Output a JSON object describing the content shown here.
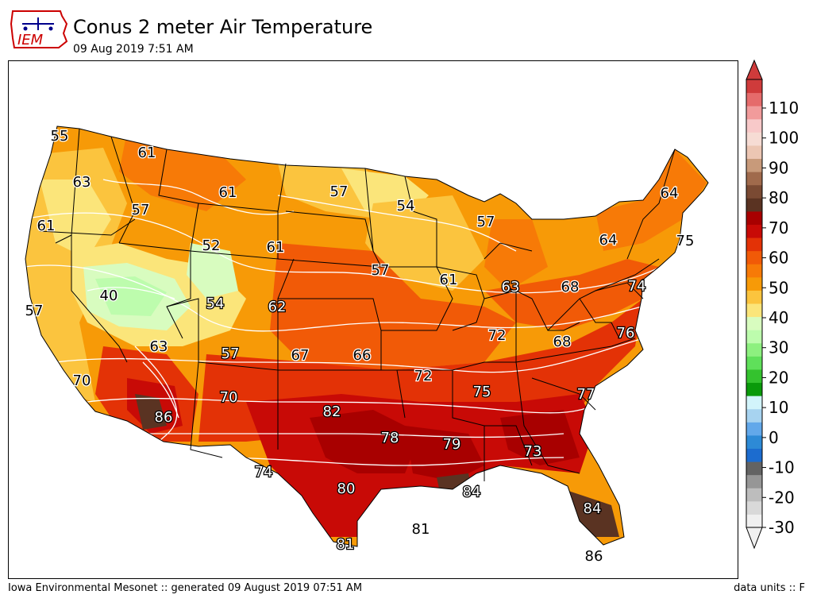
{
  "header": {
    "logo_text": "IEM",
    "title": "Conus 2 meter Air Temperature",
    "subtitle": "09 Aug 2019 7:51 AM"
  },
  "footer": {
    "left": "Iowa Environmental Mesonet :: generated 09 August 2019 07:51 AM",
    "right": "data units :: F"
  },
  "colorbar": {
    "ticks": [
      "110",
      "100",
      "90",
      "80",
      "70",
      "60",
      "50",
      "40",
      "30",
      "20",
      "10",
      "0",
      "-10",
      "-20",
      "-30"
    ],
    "colors": [
      "#f0f0f0",
      "#d9d9d9",
      "#bdbdbd",
      "#969696",
      "#636363",
      "#1c6ccf",
      "#2d8ad6",
      "#62a8ea",
      "#a7d3f0",
      "#d2f4fb",
      "#0a9a0a",
      "#34c22e",
      "#5fe05a",
      "#8df07f",
      "#bdfcad",
      "#d8fcbf",
      "#fbe57a",
      "#fbc43e",
      "#f79a07",
      "#f77a07",
      "#f15a07",
      "#e33206",
      "#c80a06",
      "#a80000",
      "#5a3322",
      "#7a4a33",
      "#a06a4c",
      "#c89a7a",
      "#ecc6b3",
      "#f6dcd4",
      "#f8c9c9",
      "#f19b9b",
      "#e56b6b",
      "#cf3b3b"
    ]
  },
  "map": {
    "labels": [
      {
        "text": "55"
      },
      {
        "text": "61"
      },
      {
        "text": "63"
      },
      {
        "text": "61"
      },
      {
        "text": "57"
      },
      {
        "text": "57"
      },
      {
        "text": "54"
      },
      {
        "text": "61"
      },
      {
        "text": "57"
      },
      {
        "text": "52"
      },
      {
        "text": "61"
      },
      {
        "text": "64"
      },
      {
        "text": "64"
      },
      {
        "text": "75"
      },
      {
        "text": "57"
      },
      {
        "text": "40"
      },
      {
        "text": "54"
      },
      {
        "text": "62"
      },
      {
        "text": "57"
      },
      {
        "text": "61"
      },
      {
        "text": "63"
      },
      {
        "text": "68"
      },
      {
        "text": "74"
      },
      {
        "text": "63"
      },
      {
        "text": "57"
      },
      {
        "text": "67"
      },
      {
        "text": "66"
      },
      {
        "text": "72"
      },
      {
        "text": "68"
      },
      {
        "text": "76"
      },
      {
        "text": "70"
      },
      {
        "text": "72"
      },
      {
        "text": "75"
      },
      {
        "text": "77"
      },
      {
        "text": "86"
      },
      {
        "text": "70"
      },
      {
        "text": "82"
      },
      {
        "text": "78"
      },
      {
        "text": "79"
      },
      {
        "text": "73"
      },
      {
        "text": "74"
      },
      {
        "text": "80"
      },
      {
        "text": "84"
      },
      {
        "text": "81"
      },
      {
        "text": "84"
      },
      {
        "text": "81"
      },
      {
        "text": "86"
      }
    ]
  }
}
